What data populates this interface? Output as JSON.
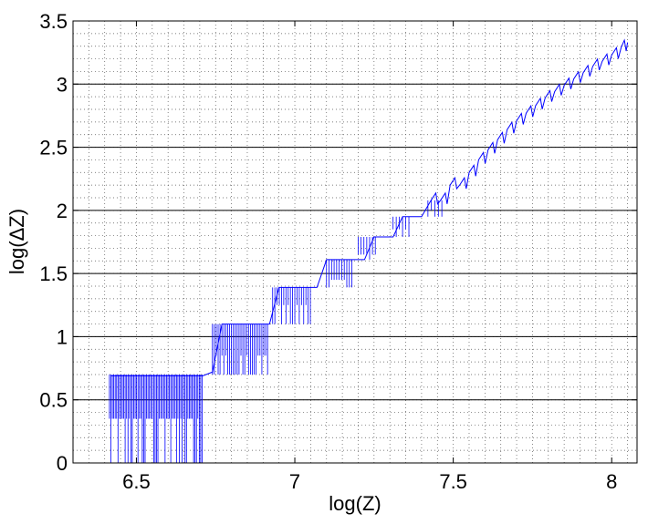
{
  "chart_data": {
    "type": "line",
    "title": "",
    "xlabel": "log(Z)",
    "ylabel": "log(ΔZ)",
    "xlim": [
      6.3,
      8.08
    ],
    "ylim": [
      0,
      3.5
    ],
    "x_ticks": [
      6.5,
      7,
      7.5,
      8
    ],
    "x_tick_labels": [
      "6.5",
      "7",
      "7.5",
      "8"
    ],
    "y_ticks": [
      0,
      0.5,
      1,
      1.5,
      2,
      2.5,
      3,
      3.5
    ],
    "y_tick_labels": [
      "0",
      "0.5",
      "1",
      "1.5",
      "2",
      "2.5",
      "3",
      "3.5"
    ],
    "minor_grid": "dotted",
    "major_grid": "horizontal solid",
    "series": [
      {
        "color": "#0000ff",
        "x": [
          6.42,
          6.45,
          6.48,
          6.51,
          6.54,
          6.57,
          6.6,
          6.63,
          6.66,
          6.69,
          6.71,
          6.74,
          6.77,
          6.8,
          6.83,
          6.86,
          6.89,
          6.92,
          6.95,
          6.98,
          7.01,
          7.04,
          7.07,
          7.1,
          7.13,
          7.16,
          7.19,
          7.22,
          7.25,
          7.28,
          7.31,
          7.34,
          7.37,
          7.4,
          7.43,
          7.46,
          7.49,
          7.52,
          7.55,
          7.58,
          7.61,
          7.64,
          7.67,
          7.7,
          7.73,
          7.76,
          7.79,
          7.82,
          7.85,
          7.88,
          7.91,
          7.94,
          7.97,
          8.0,
          8.03,
          8.05
        ],
        "y": [
          0.69,
          0.69,
          0.69,
          0.69,
          0.69,
          0.69,
          0.69,
          0.69,
          0.69,
          0.69,
          0.69,
          0.72,
          1.1,
          1.1,
          1.1,
          1.1,
          1.1,
          1.1,
          1.39,
          1.39,
          1.39,
          1.39,
          1.39,
          1.61,
          1.61,
          1.61,
          1.61,
          1.61,
          1.79,
          1.79,
          1.79,
          1.95,
          1.95,
          1.95,
          2.08,
          2.08,
          2.2,
          2.2,
          2.3,
          2.4,
          2.48,
          2.56,
          2.64,
          2.71,
          2.77,
          2.83,
          2.89,
          2.94,
          2.99,
          3.04,
          3.09,
          3.14,
          3.18,
          3.23,
          3.29,
          3.33
        ]
      }
    ]
  }
}
